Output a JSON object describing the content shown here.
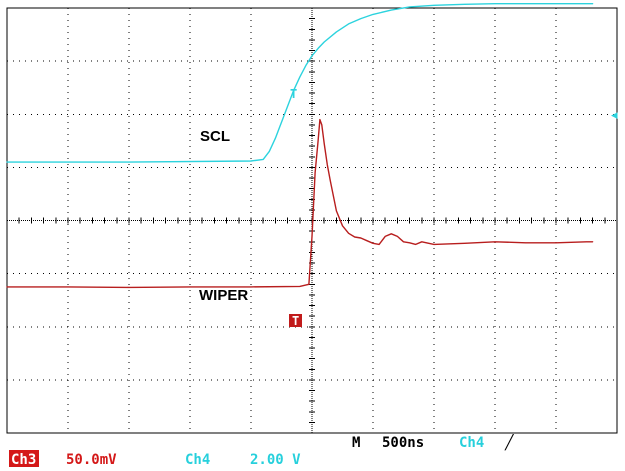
{
  "chart_data": {
    "type": "line",
    "title": "",
    "xlabel": "",
    "ylabel": "",
    "x_unit": "div",
    "y_unit": "div",
    "xlim": [
      -5,
      5
    ],
    "ylim": [
      -4,
      4
    ],
    "grid": true,
    "divisions": {
      "x": 10,
      "y": 8
    },
    "series": [
      {
        "name": "SCL",
        "channel": "Ch4",
        "color": "#2cd3de",
        "x": [
          -5.0,
          -3.0,
          -1.0,
          -0.8,
          -0.7,
          -0.6,
          -0.5,
          -0.4,
          -0.3,
          -0.2,
          -0.1,
          0.0,
          0.1,
          0.2,
          0.4,
          0.6,
          0.8,
          1.0,
          1.3,
          1.6,
          2.0,
          2.5,
          3.0,
          3.5,
          4.0,
          4.6
        ],
        "y": [
          1.1,
          1.1,
          1.12,
          1.15,
          1.3,
          1.55,
          1.85,
          2.15,
          2.45,
          2.7,
          2.92,
          3.1,
          3.24,
          3.36,
          3.55,
          3.7,
          3.8,
          3.88,
          3.96,
          4.02,
          4.05,
          4.07,
          4.08,
          4.08,
          4.08,
          4.08
        ]
      },
      {
        "name": "WIPER",
        "channel": "Ch3",
        "color": "#b81e1e",
        "x": [
          -5.0,
          -4.0,
          -3.0,
          -2.0,
          -1.0,
          -0.2,
          -0.05,
          0.0,
          0.05,
          0.1,
          0.13,
          0.16,
          0.2,
          0.25,
          0.3,
          0.4,
          0.5,
          0.6,
          0.7,
          0.8,
          0.9,
          1.0,
          1.1,
          1.2,
          1.3,
          1.4,
          1.5,
          1.6,
          1.7,
          1.8,
          2.0,
          2.5,
          3.0,
          3.5,
          4.0,
          4.5,
          4.6
        ],
        "y": [
          -1.25,
          -1.25,
          -1.26,
          -1.25,
          -1.25,
          -1.24,
          -1.2,
          -0.3,
          0.9,
          1.5,
          1.9,
          1.8,
          1.45,
          1.05,
          0.75,
          0.18,
          -0.1,
          -0.24,
          -0.31,
          -0.33,
          -0.38,
          -0.43,
          -0.45,
          -0.3,
          -0.25,
          -0.3,
          -0.4,
          -0.42,
          -0.45,
          -0.4,
          -0.45,
          -0.43,
          -0.4,
          -0.42,
          -0.42,
          -0.4,
          -0.4
        ]
      }
    ],
    "annotations": {
      "scl_label": "SCL",
      "wiper_label": "WIPER",
      "trigger_marker_ch4": "T",
      "trigger_marker_ch3": "T",
      "ch4_trigger_level_marker": "◂"
    },
    "status_bar": {
      "ch3_badge": "Ch3",
      "ch3_scale": "50.0mV",
      "ch4_name": "Ch4",
      "ch4_scale": "2.00 V",
      "timebase_label": "M",
      "timebase_value": "500ns",
      "trigger_source": "Ch4",
      "trigger_slope": "╱"
    }
  }
}
